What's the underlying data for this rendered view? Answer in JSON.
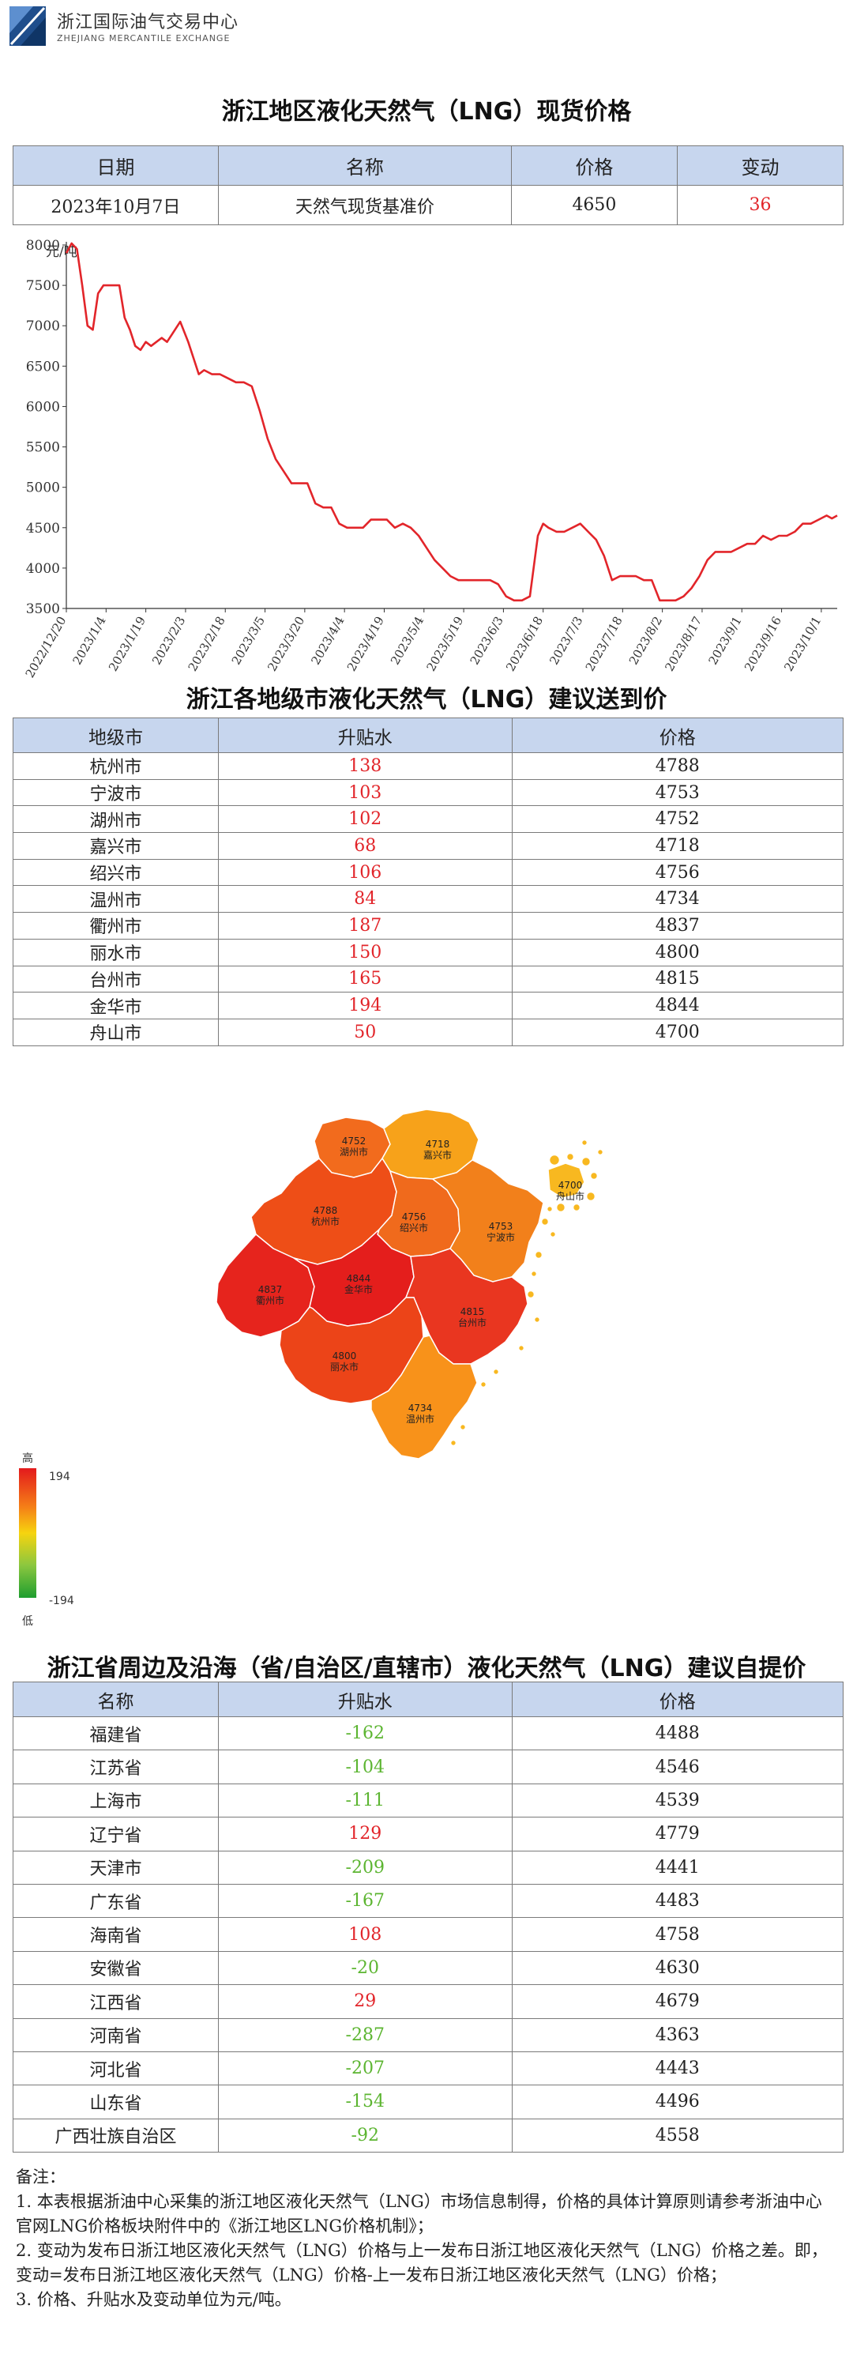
{
  "header": {
    "org_cn": "浙江国际油气交易中心",
    "org_en": "ZHEJIANG MERCANTILE EXCHANGE"
  },
  "spot": {
    "title": "浙江地区液化天然气（LNG）现货价格",
    "headers": [
      "日期",
      "名称",
      "价格",
      "变动"
    ],
    "row": [
      "2023年10月7日",
      "天然气现货基准价",
      "4650",
      "36"
    ]
  },
  "chart_data": {
    "type": "line",
    "ylabel": "元/吨",
    "ylim": [
      3500,
      8000
    ],
    "yticks": [
      3500,
      4000,
      4500,
      5000,
      5500,
      6000,
      6500,
      7000,
      7500,
      8000
    ],
    "xticks": [
      "2022/12/20",
      "2023/1/4",
      "2023/1/19",
      "2023/2/3",
      "2023/2/18",
      "2023/3/5",
      "2023/3/20",
      "2023/4/4",
      "2023/4/19",
      "2023/5/4",
      "2023/5/19",
      "2023/6/3",
      "2023/6/18",
      "2023/7/3",
      "2023/7/18",
      "2023/8/2",
      "2023/8/17",
      "2023/9/1",
      "2023/9/16",
      "2023/10/1"
    ],
    "series": [
      {
        "color": "#e2252a",
        "x": [
          "2022/12/20",
          "2022/12/22",
          "2022/12/24",
          "2022/12/26",
          "2022/12/28",
          "2022/12/30",
          "2023/1/1",
          "2023/1/3",
          "2023/1/5",
          "2023/1/7",
          "2023/1/9",
          "2023/1/11",
          "2023/1/13",
          "2023/1/15",
          "2023/1/17",
          "2023/1/19",
          "2023/1/21",
          "2023/1/23",
          "2023/1/25",
          "2023/1/27",
          "2023/1/29",
          "2023/2/1",
          "2023/2/4",
          "2023/2/6",
          "2023/2/8",
          "2023/2/10",
          "2023/2/13",
          "2023/2/16",
          "2023/2/19",
          "2023/2/22",
          "2023/2/25",
          "2023/2/28",
          "2023/3/3",
          "2023/3/6",
          "2023/3/9",
          "2023/3/12",
          "2023/3/15",
          "2023/3/18",
          "2023/3/21",
          "2023/3/24",
          "2023/3/27",
          "2023/3/30",
          "2023/4/2",
          "2023/4/5",
          "2023/4/8",
          "2023/4/11",
          "2023/4/14",
          "2023/4/17",
          "2023/4/20",
          "2023/4/23",
          "2023/4/26",
          "2023/4/29",
          "2023/5/2",
          "2023/5/5",
          "2023/5/8",
          "2023/5/11",
          "2023/5/14",
          "2023/5/17",
          "2023/5/20",
          "2023/5/23",
          "2023/5/26",
          "2023/5/29",
          "2023/6/1",
          "2023/6/4",
          "2023/6/7",
          "2023/6/10",
          "2023/6/13",
          "2023/6/16",
          "2023/6/18",
          "2023/6/20",
          "2023/6/23",
          "2023/6/26",
          "2023/6/29",
          "2023/7/2",
          "2023/7/5",
          "2023/7/8",
          "2023/7/11",
          "2023/7/14",
          "2023/7/17",
          "2023/7/20",
          "2023/7/23",
          "2023/7/26",
          "2023/7/29",
          "2023/8/1",
          "2023/8/4",
          "2023/8/7",
          "2023/8/10",
          "2023/8/13",
          "2023/8/16",
          "2023/8/19",
          "2023/8/22",
          "2023/8/25",
          "2023/8/28",
          "2023/8/31",
          "2023/9/3",
          "2023/9/6",
          "2023/9/9",
          "2023/9/12",
          "2023/9/15",
          "2023/9/18",
          "2023/9/21",
          "2023/9/24",
          "2023/9/27",
          "2023/9/30",
          "2023/10/3",
          "2023/10/5",
          "2023/10/7"
        ],
        "y": [
          7900,
          8020,
          7950,
          7500,
          7000,
          6950,
          7400,
          7500,
          7500,
          7500,
          7500,
          7100,
          6950,
          6750,
          6700,
          6800,
          6750,
          6800,
          6850,
          6800,
          6900,
          7050,
          6800,
          6600,
          6400,
          6450,
          6400,
          6400,
          6350,
          6300,
          6300,
          6250,
          5950,
          5600,
          5350,
          5200,
          5050,
          5050,
          5050,
          4800,
          4750,
          4750,
          4550,
          4500,
          4500,
          4500,
          4600,
          4600,
          4600,
          4500,
          4550,
          4500,
          4400,
          4250,
          4100,
          4000,
          3900,
          3850,
          3850,
          3850,
          3850,
          3850,
          3800,
          3650,
          3600,
          3600,
          3650,
          4400,
          4550,
          4500,
          4450,
          4450,
          4500,
          4550,
          4450,
          4350,
          4150,
          3850,
          3900,
          3900,
          3900,
          3850,
          3850,
          3600,
          3600,
          3600,
          3650,
          3750,
          3900,
          4100,
          4200,
          4200,
          4200,
          4250,
          4300,
          4300,
          4400,
          4350,
          4400,
          4400,
          4450,
          4550,
          4550,
          4600,
          4650,
          4614,
          4650
        ]
      }
    ]
  },
  "cities": {
    "title": "浙江各地级市液化天然气（LNG）建议送到价",
    "headers": [
      "地级市",
      "升贴水",
      "价格"
    ],
    "rows": [
      {
        "name": "杭州市",
        "diff": "138",
        "price": "4788"
      },
      {
        "name": "宁波市",
        "diff": "103",
        "price": "4753"
      },
      {
        "name": "湖州市",
        "diff": "102",
        "price": "4752"
      },
      {
        "name": "嘉兴市",
        "diff": "68",
        "price": "4718"
      },
      {
        "name": "绍兴市",
        "diff": "106",
        "price": "4756"
      },
      {
        "name": "温州市",
        "diff": "84",
        "price": "4734"
      },
      {
        "name": "衢州市",
        "diff": "187",
        "price": "4837"
      },
      {
        "name": "丽水市",
        "diff": "150",
        "price": "4800"
      },
      {
        "name": "台州市",
        "diff": "165",
        "price": "4815"
      },
      {
        "name": "金华市",
        "diff": "194",
        "price": "4844"
      },
      {
        "name": "舟山市",
        "diff": "50",
        "price": "4700"
      }
    ]
  },
  "map": {
    "regions": [
      {
        "name": "湖州市",
        "price": "4752",
        "color": "#f26b1d"
      },
      {
        "name": "嘉兴市",
        "price": "4718",
        "color": "#f7a21a"
      },
      {
        "name": "杭州市",
        "price": "4788",
        "color": "#ee4e17"
      },
      {
        "name": "绍兴市",
        "price": "4756",
        "color": "#f06a1c"
      },
      {
        "name": "宁波市",
        "price": "4753",
        "color": "#f2801b"
      },
      {
        "name": "舟山市",
        "price": "4700",
        "color": "#f8b820"
      },
      {
        "name": "衢州市",
        "price": "4837",
        "color": "#e6241d"
      },
      {
        "name": "金华市",
        "price": "4844",
        "color": "#e41e1c"
      },
      {
        "name": "台州市",
        "price": "4815",
        "color": "#e93620"
      },
      {
        "name": "丽水市",
        "price": "4800",
        "color": "#ec4418"
      },
      {
        "name": "温州市",
        "price": "4734",
        "color": "#f8921a"
      }
    ],
    "legend": {
      "high_label": "高",
      "low_label": "低",
      "max": "194",
      "min": "-194"
    }
  },
  "provinces": {
    "title": "浙江省周边及沿海（省/自治区/直辖市）液化天然气（LNG）建议自提价",
    "headers": [
      "名称",
      "升贴水",
      "价格"
    ],
    "rows": [
      {
        "name": "福建省",
        "diff": "-162",
        "price": "4488"
      },
      {
        "name": "江苏省",
        "diff": "-104",
        "price": "4546"
      },
      {
        "name": "上海市",
        "diff": "-111",
        "price": "4539"
      },
      {
        "name": "辽宁省",
        "diff": "129",
        "price": "4779"
      },
      {
        "name": "天津市",
        "diff": "-209",
        "price": "4441"
      },
      {
        "name": "广东省",
        "diff": "-167",
        "price": "4483"
      },
      {
        "name": "海南省",
        "diff": "108",
        "price": "4758"
      },
      {
        "name": "安徽省",
        "diff": "-20",
        "price": "4630"
      },
      {
        "name": "江西省",
        "diff": "29",
        "price": "4679"
      },
      {
        "name": "河南省",
        "diff": "-287",
        "price": "4363"
      },
      {
        "name": "河北省",
        "diff": "-207",
        "price": "4443"
      },
      {
        "name": "山东省",
        "diff": "-154",
        "price": "4496"
      },
      {
        "name": "广西壮族自治区",
        "diff": "-92",
        "price": "4558"
      }
    ]
  },
  "notes": {
    "heading": "备注：",
    "n1": "1. 本表根据浙油中心采集的浙江地区液化天然气（LNG）市场信息制得，价格的具体计算原则请参考浙油中心官网LNG价格板块附件中的《浙江地区LNG价格机制》；",
    "n2": "2. 变动为发布日浙江地区液化天然气（LNG）价格与上一发布日浙江地区液化天然气（LNG）价格之差。即，变动=发布日浙江地区液化天然气（LNG）价格-上一发布日浙江地区液化天然气（LNG）价格；",
    "n3": "3. 价格、升贴水及变动单位为元/吨。"
  }
}
